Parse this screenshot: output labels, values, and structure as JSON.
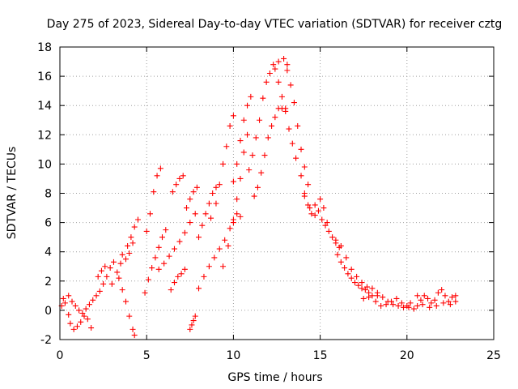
{
  "chart_data": {
    "type": "scatter",
    "title": "Day 275 of 2023, Sidereal Day-to-day VTEC variation (SDTVAR) for receiver cztg",
    "xlabel": "GPS time / hours",
    "ylabel": "SDTVAR / TECUs",
    "xlim": [
      0,
      25
    ],
    "ylim": [
      -2,
      18
    ],
    "xticks": [
      0,
      5,
      10,
      15,
      20,
      25
    ],
    "yticks": [
      -2,
      0,
      2,
      4,
      6,
      8,
      10,
      12,
      14,
      16,
      18
    ],
    "grid": true,
    "marker": "+",
    "color": "#ff0000",
    "series": [
      {
        "name": "SDTVAR",
        "points": [
          [
            0.1,
            0.3
          ],
          [
            0.2,
            0.8
          ],
          [
            0.3,
            0.5
          ],
          [
            0.5,
            -0.3
          ],
          [
            0.6,
            -0.9
          ],
          [
            0.8,
            -1.3
          ],
          [
            1.0,
            -1.1
          ],
          [
            1.2,
            -0.8
          ],
          [
            1.4,
            -0.4
          ],
          [
            1.6,
            -0.6
          ],
          [
            1.8,
            -1.2
          ],
          [
            0.5,
            1.0
          ],
          [
            0.7,
            0.6
          ],
          [
            0.9,
            0.3
          ],
          [
            1.1,
            0.0
          ],
          [
            1.3,
            -0.2
          ],
          [
            1.5,
            0.1
          ],
          [
            1.7,
            0.4
          ],
          [
            1.9,
            0.7
          ],
          [
            2.1,
            1.0
          ],
          [
            2.3,
            1.3
          ],
          [
            2.5,
            1.8
          ],
          [
            2.7,
            2.3
          ],
          [
            2.9,
            2.9
          ],
          [
            3.1,
            3.3
          ],
          [
            2.2,
            2.3
          ],
          [
            2.4,
            2.7
          ],
          [
            2.6,
            3.0
          ],
          [
            3.4,
            2.2
          ],
          [
            3.6,
            1.4
          ],
          [
            3.8,
            0.6
          ],
          [
            4.0,
            -0.4
          ],
          [
            4.2,
            -1.3
          ],
          [
            4.3,
            -1.7
          ],
          [
            3.0,
            1.8
          ],
          [
            3.3,
            2.6
          ],
          [
            3.5,
            3.2
          ],
          [
            3.8,
            3.5
          ],
          [
            4.0,
            3.9
          ],
          [
            4.2,
            4.6
          ],
          [
            3.6,
            3.8
          ],
          [
            3.9,
            4.4
          ],
          [
            4.1,
            5.0
          ],
          [
            4.3,
            5.7
          ],
          [
            4.5,
            6.2
          ],
          [
            4.9,
            1.2
          ],
          [
            5.1,
            2.1
          ],
          [
            5.3,
            2.9
          ],
          [
            5.5,
            3.6
          ],
          [
            5.7,
            4.3
          ],
          [
            5.9,
            5.0
          ],
          [
            6.1,
            5.5
          ],
          [
            5.0,
            5.4
          ],
          [
            5.2,
            6.6
          ],
          [
            5.4,
            8.1
          ],
          [
            5.6,
            9.2
          ],
          [
            5.8,
            9.7
          ],
          [
            5.7,
            2.8
          ],
          [
            6.0,
            3.2
          ],
          [
            6.3,
            3.7
          ],
          [
            6.6,
            4.2
          ],
          [
            6.9,
            4.7
          ],
          [
            7.2,
            5.3
          ],
          [
            7.5,
            6.0
          ],
          [
            7.8,
            6.6
          ],
          [
            6.4,
            1.4
          ],
          [
            6.6,
            1.9
          ],
          [
            6.8,
            2.3
          ],
          [
            7.0,
            2.5
          ],
          [
            7.2,
            2.8
          ],
          [
            6.5,
            8.1
          ],
          [
            6.7,
            8.6
          ],
          [
            6.9,
            9.0
          ],
          [
            7.1,
            9.2
          ],
          [
            7.3,
            7.0
          ],
          [
            7.5,
            7.6
          ],
          [
            7.7,
            8.1
          ],
          [
            7.9,
            8.4
          ],
          [
            7.5,
            -1.3
          ],
          [
            7.6,
            -1.0
          ],
          [
            7.7,
            -0.7
          ],
          [
            7.8,
            -0.4
          ],
          [
            8.0,
            5.0
          ],
          [
            8.2,
            5.8
          ],
          [
            8.4,
            6.6
          ],
          [
            8.6,
            7.3
          ],
          [
            8.8,
            8.0
          ],
          [
            9.0,
            8.4
          ],
          [
            8.0,
            1.5
          ],
          [
            8.3,
            2.3
          ],
          [
            8.6,
            3.0
          ],
          [
            8.9,
            3.6
          ],
          [
            9.2,
            4.2
          ],
          [
            9.5,
            4.8
          ],
          [
            9.8,
            5.6
          ],
          [
            10.0,
            6.2
          ],
          [
            8.7,
            6.3
          ],
          [
            9.0,
            7.3
          ],
          [
            9.2,
            8.6
          ],
          [
            9.4,
            10.0
          ],
          [
            9.6,
            11.2
          ],
          [
            9.8,
            12.6
          ],
          [
            10.0,
            13.3
          ],
          [
            9.4,
            3.0
          ],
          [
            9.7,
            4.4
          ],
          [
            10.0,
            6.0
          ],
          [
            10.2,
            7.6
          ],
          [
            10.4,
            9.0
          ],
          [
            10.6,
            10.8
          ],
          [
            10.8,
            12.0
          ],
          [
            10.2,
            6.6
          ],
          [
            10.4,
            6.4
          ],
          [
            10.0,
            8.8
          ],
          [
            10.2,
            10.0
          ],
          [
            10.4,
            11.6
          ],
          [
            10.6,
            13.0
          ],
          [
            10.8,
            14.0
          ],
          [
            11.0,
            14.6
          ],
          [
            10.9,
            9.6
          ],
          [
            11.1,
            10.6
          ],
          [
            11.3,
            11.8
          ],
          [
            11.5,
            13.0
          ],
          [
            11.7,
            14.5
          ],
          [
            11.9,
            15.6
          ],
          [
            12.1,
            16.2
          ],
          [
            12.3,
            16.8
          ],
          [
            12.6,
            17.0
          ],
          [
            12.9,
            17.2
          ],
          [
            13.1,
            16.8
          ],
          [
            11.2,
            7.8
          ],
          [
            11.4,
            8.4
          ],
          [
            11.6,
            9.4
          ],
          [
            11.8,
            10.6
          ],
          [
            12.0,
            11.8
          ],
          [
            12.2,
            12.6
          ],
          [
            12.4,
            13.2
          ],
          [
            12.6,
            13.8
          ],
          [
            12.8,
            13.8
          ],
          [
            13.0,
            13.6
          ],
          [
            12.4,
            16.5
          ],
          [
            12.6,
            15.6
          ],
          [
            12.8,
            14.6
          ],
          [
            13.0,
            13.8
          ],
          [
            13.2,
            12.4
          ],
          [
            13.4,
            11.4
          ],
          [
            13.6,
            10.4
          ],
          [
            13.1,
            16.4
          ],
          [
            13.3,
            15.4
          ],
          [
            13.5,
            14.2
          ],
          [
            13.7,
            12.6
          ],
          [
            13.9,
            11.0
          ],
          [
            14.1,
            9.8
          ],
          [
            14.3,
            8.6
          ],
          [
            13.9,
            9.2
          ],
          [
            14.1,
            8.0
          ],
          [
            14.3,
            7.2
          ],
          [
            14.5,
            6.6
          ],
          [
            14.7,
            6.5
          ],
          [
            14.9,
            6.8
          ],
          [
            15.1,
            6.2
          ],
          [
            15.3,
            5.8
          ],
          [
            15.5,
            5.4
          ],
          [
            15.7,
            5.0
          ],
          [
            15.9,
            4.6
          ],
          [
            16.1,
            4.3
          ],
          [
            14.1,
            7.8
          ],
          [
            14.4,
            7.0
          ],
          [
            14.7,
            7.2
          ],
          [
            15.0,
            7.6
          ],
          [
            15.2,
            7.0
          ],
          [
            15.4,
            6.0
          ],
          [
            15.9,
            4.8
          ],
          [
            16.0,
            3.8
          ],
          [
            16.2,
            3.3
          ],
          [
            16.4,
            2.9
          ],
          [
            16.6,
            2.5
          ],
          [
            16.8,
            2.2
          ],
          [
            17.0,
            1.9
          ],
          [
            17.2,
            1.7
          ],
          [
            17.4,
            1.5
          ],
          [
            17.6,
            1.4
          ],
          [
            17.8,
            1.2
          ],
          [
            16.2,
            4.4
          ],
          [
            16.5,
            3.6
          ],
          [
            16.8,
            2.8
          ],
          [
            17.1,
            2.3
          ],
          [
            17.4,
            1.9
          ],
          [
            17.7,
            1.6
          ],
          [
            18.0,
            1.5
          ],
          [
            18.3,
            1.2
          ],
          [
            17.5,
            0.8
          ],
          [
            17.8,
            0.9
          ],
          [
            18.0,
            1.0
          ],
          [
            18.3,
            1.0
          ],
          [
            18.6,
            0.9
          ],
          [
            18.9,
            0.6
          ],
          [
            19.2,
            0.4
          ],
          [
            19.5,
            0.3
          ],
          [
            19.8,
            0.2
          ],
          [
            20.1,
            0.2
          ],
          [
            18.2,
            0.6
          ],
          [
            18.5,
            0.3
          ],
          [
            18.8,
            0.4
          ],
          [
            19.1,
            0.6
          ],
          [
            19.4,
            0.8
          ],
          [
            19.7,
            0.5
          ],
          [
            20.0,
            0.3
          ],
          [
            20.2,
            0.5
          ],
          [
            20.4,
            0.1
          ],
          [
            20.6,
            0.3
          ],
          [
            20.8,
            0.7
          ],
          [
            21.0,
            1.0
          ],
          [
            21.2,
            0.8
          ],
          [
            21.4,
            0.5
          ],
          [
            21.6,
            0.7
          ],
          [
            21.8,
            1.2
          ],
          [
            22.0,
            1.4
          ],
          [
            22.2,
            1.0
          ],
          [
            22.4,
            0.6
          ],
          [
            22.6,
            0.9
          ],
          [
            22.8,
            0.6
          ],
          [
            20.6,
            1.0
          ],
          [
            20.9,
            0.4
          ],
          [
            21.3,
            0.2
          ],
          [
            21.7,
            0.3
          ],
          [
            22.1,
            0.5
          ],
          [
            22.5,
            0.4
          ],
          [
            22.8,
            1.0
          ]
        ]
      }
    ]
  }
}
